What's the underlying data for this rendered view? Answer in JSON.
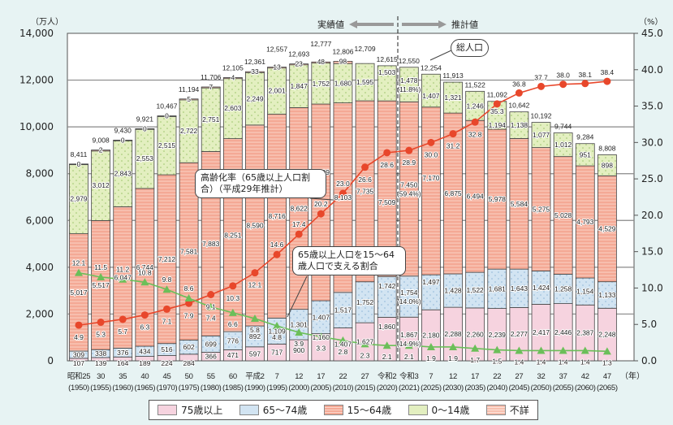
{
  "chart_data": {
    "type": "bar",
    "stacked": true,
    "left_axis": {
      "unit_label": "（万人）",
      "ylim": [
        0,
        14000
      ],
      "ticks": [
        "0",
        "2,000",
        "4,000",
        "6,000",
        "8,000",
        "10,000",
        "12,000",
        "14,000"
      ]
    },
    "right_axis": {
      "unit_label": "（%）",
      "ylim": [
        0,
        45
      ],
      "ticks": [
        "0.0",
        "5.0",
        "10.0",
        "15.0",
        "20.0",
        "25.0",
        "30.0",
        "35.0",
        "40.0",
        "45.0"
      ]
    },
    "x_unit_label": "（年）",
    "grid": true,
    "legend_position": "bottom",
    "era_labels": [
      "昭和25",
      "30",
      "35",
      "40",
      "45",
      "50",
      "55",
      "60",
      "平成2",
      "7",
      "12",
      "17",
      "22",
      "27",
      "令和2",
      "令和3",
      "7",
      "12",
      "17",
      "22",
      "27",
      "32",
      "37",
      "42",
      "47"
    ],
    "years": [
      "(1950)",
      "(1955)",
      "(1960)",
      "(1965)",
      "(1970)",
      "(1975)",
      "(1980)",
      "(1985)",
      "(1990)",
      "(1995)",
      "(2000)",
      "(2005)",
      "(2010)",
      "(2015)",
      "(2020)",
      "(2021)",
      "(2025)",
      "(2030)",
      "(2035)",
      "(2040)",
      "(2045)",
      "(2050)",
      "(2055)",
      "(2060)",
      "(2065)"
    ],
    "series": [
      {
        "name": "75歳以上",
        "color": "#f6d3df",
        "values": [
          107,
          139,
          164,
          189,
          224,
          284,
          366,
          471,
          597,
          717,
          900,
          1160,
          1407,
          1627,
          1860,
          1867,
          2180,
          2288,
          2260,
          2239,
          2277,
          2417,
          2446,
          2387,
          2248
        ]
      },
      {
        "name": "65～74歳",
        "color": "#d2e4f2",
        "values": [
          309,
          338,
          376,
          434,
          516,
          602,
          699,
          776,
          892,
          1109,
          1301,
          1407,
          1517,
          1752,
          1742,
          1754,
          1497,
          1428,
          1522,
          1681,
          1643,
          1424,
          1258,
          1154,
          1133
        ]
      },
      {
        "name": "15～64歳",
        "color": "#f4a995",
        "values": [
          5017,
          5517,
          6047,
          6744,
          7212,
          7581,
          7883,
          8251,
          8590,
          8716,
          8622,
          8409,
          8103,
          7735,
          7509,
          7450,
          7170,
          6875,
          6494,
          5978,
          5584,
          5275,
          5028,
          4793,
          4529
        ]
      },
      {
        "name": "0～14歳",
        "color": "#e3efc0",
        "values": [
          2979,
          3012,
          2843,
          2553,
          2515,
          2722,
          2751,
          2603,
          2249,
          2001,
          1847,
          1752,
          1680,
          1595,
          1503,
          1478,
          1407,
          1321,
          1246,
          1194,
          1138,
          1077,
          1012,
          951,
          898
        ]
      },
      {
        "name": "不詳",
        "color": "#f7bfae",
        "values": [
          0,
          2,
          0,
          0,
          0,
          5,
          7,
          4,
          33,
          13,
          23,
          48,
          98,
          null,
          null,
          null,
          null,
          null,
          null,
          null,
          null,
          null,
          null,
          null,
          null
        ]
      }
    ],
    "share_2021": {
      "75歳以上": "(14.9%)",
      "65～74歳": "(14.0%)",
      "15～64歳": "(59.4%)",
      "0～14歳": "(11.8%)"
    },
    "totals": [
      "8,411",
      "9,008",
      "9,430",
      "9,921",
      "10,467",
      "11,194",
      "11,706",
      "12,105",
      "12,361",
      "12,557",
      "12,693",
      "12,777",
      "12,806",
      "12,709",
      "12,615",
      "12,550",
      "12,254",
      "11,913",
      "11,522",
      "11,092",
      "10,642",
      "10,192",
      "9,744",
      "9,284",
      "8,808"
    ],
    "lines": [
      {
        "name": "高齢化率（65歳以上人口割合）（平成29年推計）",
        "axis": "right",
        "color": "#e8472b",
        "marker": "circle",
        "values": [
          4.9,
          5.3,
          5.7,
          6.3,
          7.1,
          7.9,
          9.1,
          10.3,
          12.1,
          14.6,
          17.4,
          20.2,
          23.0,
          26.6,
          28.6,
          28.9,
          30.0,
          31.2,
          32.8,
          35.3,
          36.8,
          37.7,
          38.0,
          38.1,
          38.4
        ]
      },
      {
        "name": "65歳以上人口を15～64歳人口で支える割合",
        "axis": "right",
        "color": "#6bbf59",
        "marker": "triangle",
        "values": [
          12.1,
          11.5,
          11.2,
          10.8,
          9.8,
          8.6,
          7.4,
          6.6,
          5.8,
          4.8,
          3.9,
          3.3,
          2.8,
          2.3,
          2.1,
          2.1,
          1.9,
          1.9,
          1.7,
          1.5,
          1.4,
          1.4,
          1.4,
          1.4,
          1.3
        ]
      }
    ],
    "annotations": {
      "actual": "実績値",
      "estimate": "推計値",
      "total_callout": "総人口"
    }
  }
}
